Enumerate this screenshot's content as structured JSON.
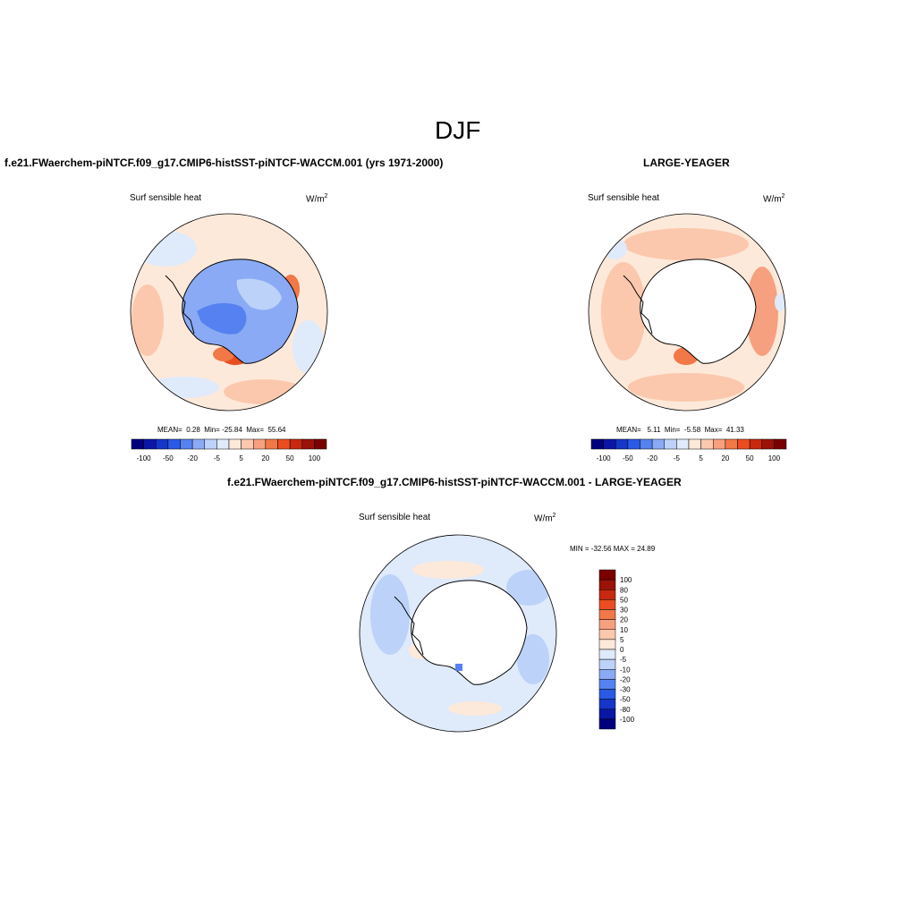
{
  "title": "DJF",
  "panels": [
    {
      "id": "model",
      "heading": "f.e21.FWaerchem-piNTCF.f09_g17.CMIP6-histSST-piNTCF-WACCM.001 (yrs 1971-2000)",
      "variable": "Surf sensible heat",
      "units_base": "W/m",
      "units_exp": "2",
      "stats": {
        "mean": "0.28",
        "min": "-25.84",
        "max": "55.64"
      },
      "stats_labels": {
        "mean": "MEAN=",
        "min": "Min=",
        "max": "Max="
      }
    },
    {
      "id": "obs",
      "heading": "LARGE-YEAGER",
      "variable": "Surf sensible heat",
      "units_base": "W/m",
      "units_exp": "2",
      "stats": {
        "mean": "5.11",
        "min": "-5.58",
        "max": "41.33"
      },
      "stats_labels": {
        "mean": "MEAN=",
        "min": "Min=",
        "max": "Max="
      }
    },
    {
      "id": "diff",
      "heading": "f.e21.FWaerchem-piNTCF.f09_g17.CMIP6-histSST-piNTCF-WACCM.001 - LARGE-YEAGER",
      "variable": "Surf sensible heat",
      "units_base": "W/m",
      "units_exp": "2",
      "minmax_text": "MIN = -32.56 MAX =  24.89"
    }
  ],
  "colorbar": {
    "colors": [
      "#00007f",
      "#0a16a6",
      "#1536c8",
      "#2a5ae6",
      "#5582f0",
      "#8aaaf5",
      "#bcd2f8",
      "#dfeafb",
      "#fde9da",
      "#fbc8ad",
      "#f7a080",
      "#f27848",
      "#ea4e20",
      "#c82810",
      "#9b1208",
      "#7a0000"
    ],
    "horizontal_tick_labels": [
      "-100",
      "-50",
      "-20",
      "-5",
      "5",
      "20",
      "50",
      "100"
    ],
    "vertical_tick_labels": [
      "100",
      "80",
      "50",
      "30",
      "20",
      "10",
      "5",
      "0",
      "-5",
      "-10",
      "-20",
      "-30",
      "-50",
      "-80",
      "-100"
    ]
  }
}
